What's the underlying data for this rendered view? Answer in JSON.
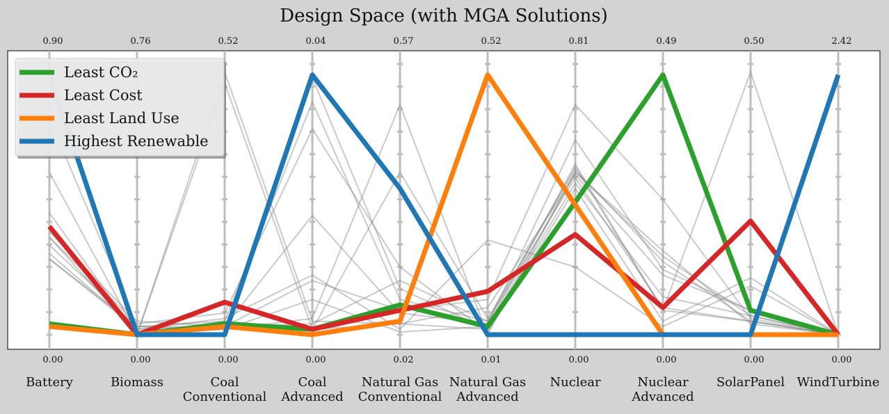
{
  "chart_data": {
    "type": "line",
    "title": "Design Space (with MGA Solutions)",
    "categories": [
      "Battery",
      "Biomass",
      "Coal\nConventional",
      "Coal\nAdvanced",
      "Natural Gas\nConventional",
      "Natural Gas\nAdvanced",
      "Nuclear",
      "Nuclear\nAdvanced",
      "SolarPanel",
      "WindTurbine"
    ],
    "axis_max": [
      "0.90",
      "0.76",
      "0.52",
      "0.04",
      "0.57",
      "0.52",
      "0.81",
      "0.49",
      "0.50",
      "2.42"
    ],
    "axis_min": [
      "0.00",
      "0.00",
      "0.00",
      "0.00",
      "0.02",
      "0.01",
      "0.00",
      "0.00",
      "0.00",
      "0.00"
    ],
    "y_normalized_range": [
      0,
      1
    ],
    "grid": false,
    "legend_position": "top-left",
    "series": [
      {
        "name": "Least CO₂",
        "color": "#2ca02c",
        "values": [
          0.04,
          0.0,
          0.04,
          0.02,
          0.11,
          0.03,
          0.49,
          0.96,
          0.09,
          0.0
        ]
      },
      {
        "name": "Least Cost",
        "color": "#d62728",
        "values": [
          0.4,
          0.0,
          0.12,
          0.02,
          0.09,
          0.16,
          0.37,
          0.1,
          0.42,
          0.0
        ]
      },
      {
        "name": "Least Land Use",
        "color": "#ff7f0e",
        "values": [
          0.03,
          0.0,
          0.03,
          0.0,
          0.05,
          0.96,
          0.48,
          0.0,
          0.0,
          0.0
        ]
      },
      {
        "name": "Highest Renewable",
        "color": "#1f77b4",
        "values": [
          0.96,
          0.0,
          0.0,
          0.96,
          0.54,
          0.0,
          0.0,
          0.0,
          0.0,
          0.96
        ]
      }
    ],
    "background_solutions": [
      [
        0.33,
        0.03,
        0.05,
        0.86,
        0.13,
        0.05,
        0.58,
        0.1,
        0.05,
        0.0
      ],
      [
        0.36,
        0.0,
        0.97,
        0.05,
        0.04,
        0.02,
        0.56,
        0.14,
        0.07,
        0.0
      ],
      [
        0.3,
        0.02,
        0.06,
        0.22,
        0.02,
        0.35,
        0.25,
        0.03,
        0.18,
        0.0
      ],
      [
        0.96,
        0.0,
        0.05,
        0.02,
        0.6,
        0.06,
        0.61,
        0.27,
        0.05,
        0.0
      ],
      [
        0.45,
        0.0,
        0.02,
        0.95,
        0.17,
        0.02,
        0.6,
        0.29,
        0.07,
        0.0
      ],
      [
        0.36,
        0.04,
        0.08,
        0.76,
        0.25,
        0.01,
        0.54,
        0.05,
        0.21,
        0.0
      ],
      [
        0.28,
        0.02,
        0.03,
        0.44,
        0.08,
        0.04,
        0.72,
        0.24,
        0.09,
        0.0
      ],
      [
        0.8,
        0.03,
        0.02,
        0.13,
        0.01,
        0.03,
        0.63,
        0.09,
        0.05,
        0.0
      ],
      [
        0.38,
        0.05,
        0.03,
        0.2,
        0.09,
        0.13,
        0.85,
        0.5,
        0.06,
        0.0
      ],
      [
        0.6,
        0.0,
        0.02,
        0.06,
        0.85,
        0.0,
        0.6,
        0.31,
        0.04,
        0.0
      ],
      [
        0.28,
        0.03,
        0.03,
        0.04,
        0.2,
        0.05,
        0.62,
        0.09,
        0.97,
        0.0
      ],
      [
        0.39,
        0.0,
        0.93,
        0.02,
        0.04,
        0.1,
        0.59,
        0.22,
        0.09,
        0.0
      ]
    ]
  }
}
